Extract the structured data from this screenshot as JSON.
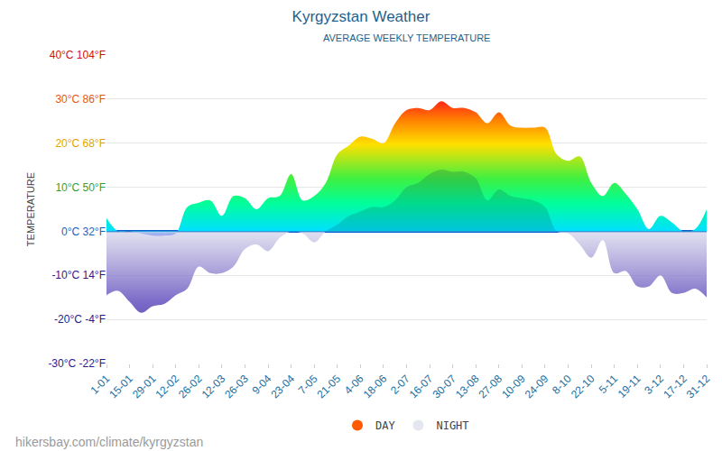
{
  "chart_data": {
    "type": "area",
    "title": "Kyrgyzstan Weather",
    "subtitle": "AVERAGE WEEKLY TEMPERATURE",
    "y_label": "TEMPERATURE",
    "source": "hikersbay.com/climate/kyrgyzstan",
    "categories": [
      "1-01",
      null,
      "15-01",
      null,
      "29-01",
      null,
      "12-02",
      null,
      "26-02",
      null,
      "12-03",
      null,
      "26-03",
      null,
      "9-04",
      null,
      "23-04",
      null,
      "7-05",
      null,
      "21-05",
      null,
      "4-06",
      null,
      "18-06",
      null,
      "2-07",
      null,
      "16-07",
      null,
      "30-07",
      null,
      "13-08",
      null,
      "27-08",
      null,
      "10-09",
      null,
      "24-09",
      null,
      "8-10",
      null,
      "22-10",
      null,
      "5-11",
      null,
      "19-11",
      null,
      "3-12",
      null,
      "17-12",
      null,
      "31-12"
    ],
    "series": [
      {
        "name": "DAY",
        "color": "#ff5a00",
        "values": [
          3,
          0,
          0,
          -0.5,
          -1,
          -1,
          -0.5,
          5.5,
          6.5,
          7,
          3.5,
          8,
          7.5,
          5,
          7.5,
          8,
          13,
          7,
          8,
          11,
          17.5,
          19.5,
          21.5,
          21,
          20,
          24.5,
          27.5,
          28,
          27.5,
          29.5,
          28,
          28,
          27,
          24.5,
          27,
          24,
          23.5,
          23.5,
          23.5,
          17.5,
          16,
          17,
          11,
          8,
          11,
          8.5,
          5,
          0.5,
          3.5,
          2,
          0,
          0.5,
          5
        ]
      },
      {
        "name": "NIGHT",
        "color": "#e4e6f0",
        "values": [
          -14.5,
          -13.5,
          -16,
          -18.5,
          -17,
          -16.5,
          -14.5,
          -13,
          -8,
          -9.5,
          -9.5,
          -8,
          -4,
          -3,
          -4.5,
          -1.5,
          0,
          -0.5,
          -2.5,
          0,
          1.5,
          3.5,
          4.5,
          5.5,
          5.5,
          7,
          10,
          11,
          13,
          14,
          13.5,
          13.5,
          12,
          7,
          9.5,
          8,
          7.5,
          7,
          5.5,
          0,
          -0.5,
          -3,
          -6,
          -2,
          -9.5,
          -9,
          -12.5,
          -12.5,
          -10,
          -14,
          -14,
          -13,
          -15
        ]
      }
    ],
    "ylim": [
      -30,
      40
    ],
    "yticks": [
      {
        "value": -30,
        "label": "-30°C -22°F"
      },
      {
        "value": -20,
        "label": "-20°C -4°F"
      },
      {
        "value": -10,
        "label": "-10°C 14°F"
      },
      {
        "value": 0,
        "label": "0°C 32°F"
      },
      {
        "value": 10,
        "label": "10°C 50°F"
      },
      {
        "value": 20,
        "label": "20°C 68°F"
      },
      {
        "value": 30,
        "label": "30°C 86°F"
      },
      {
        "value": 40,
        "label": "40°C 104°F"
      }
    ],
    "grid": true,
    "legend": "bottom"
  }
}
